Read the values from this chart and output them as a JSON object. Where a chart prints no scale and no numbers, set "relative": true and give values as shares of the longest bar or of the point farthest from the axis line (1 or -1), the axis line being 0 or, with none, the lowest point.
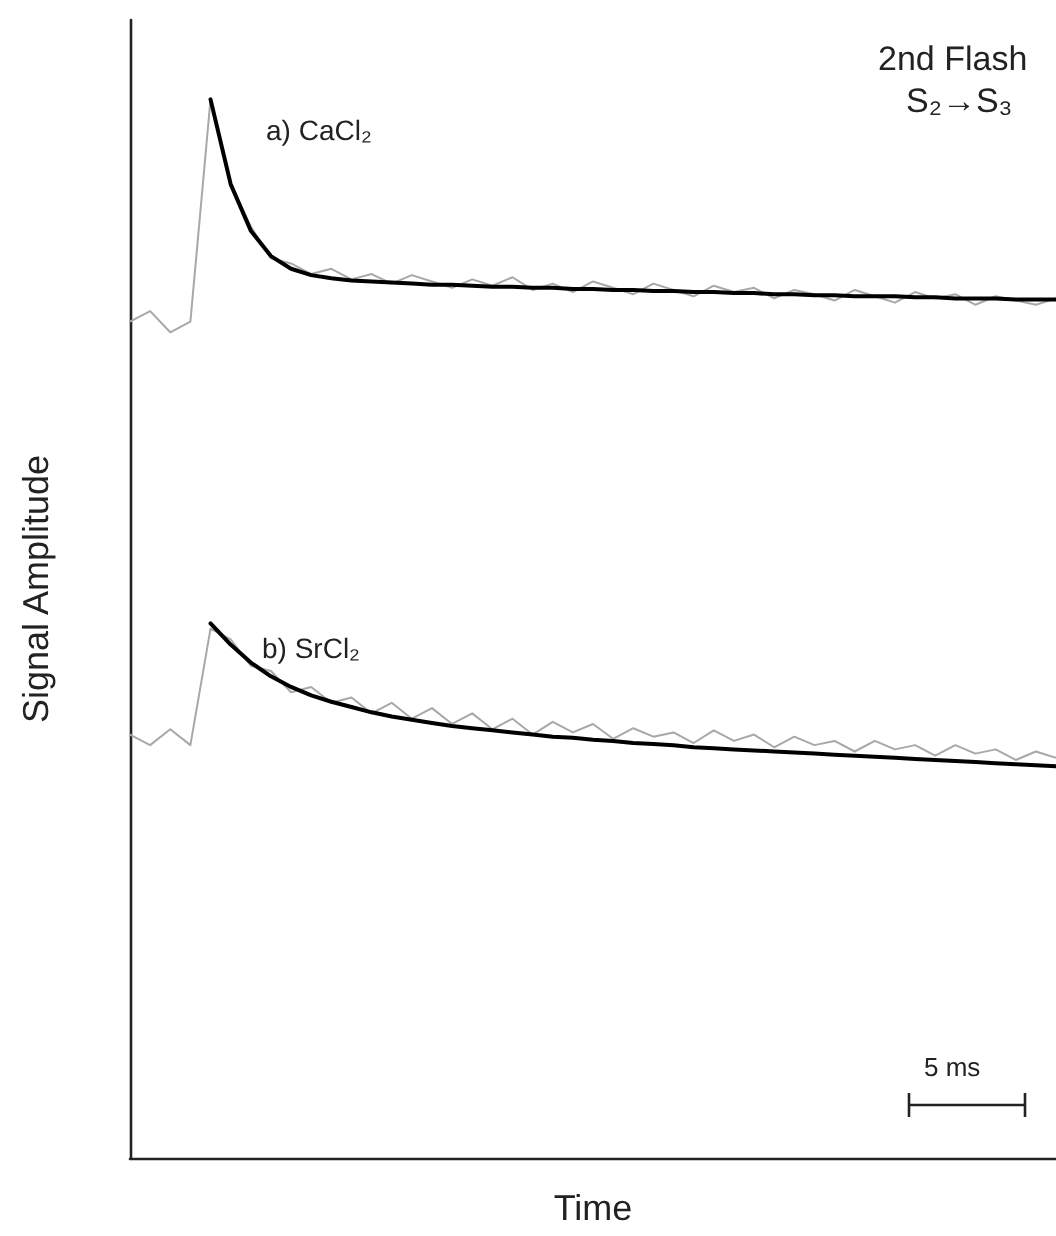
{
  "chart_data": {
    "type": "line",
    "relative": true,
    "xlabel": "Time",
    "ylabel": "Signal Amplitude",
    "marker": "none",
    "line_style": "solid",
    "annotations": [
      "a) CaCl₂",
      "b) SrCl₂",
      "2nd Flash",
      "S₂→S₃",
      "5 ms"
    ],
    "categories": [
      null,
      null,
      null,
      null,
      null,
      null,
      null,
      null,
      null,
      null,
      null,
      null,
      null,
      null,
      null,
      null,
      null,
      null,
      null,
      null,
      null,
      null,
      null,
      null,
      null,
      null,
      null,
      null,
      null,
      null,
      null,
      null,
      null,
      null,
      null,
      null,
      null,
      null,
      null,
      null,
      null,
      null,
      null,
      null,
      null,
      null,
      null
    ],
    "series": [
      {
        "color": "#a8a8a8",
        "values": [
          0.79,
          0.8,
          0.78,
          0.79,
          1,
          0.92,
          0.88,
          0.85,
          0.845,
          0.835,
          0.84,
          0.83,
          0.835,
          0.826,
          0.834,
          0.828,
          0.822,
          0.83,
          0.824,
          0.832,
          0.82,
          0.826,
          0.818,
          0.828,
          0.822,
          0.816,
          0.826,
          0.82,
          0.814,
          0.824,
          0.818,
          0.822,
          0.812,
          0.82,
          0.816,
          0.81,
          0.82,
          0.814,
          0.808,
          0.818,
          0.812,
          0.816,
          0.806,
          0.814,
          0.81,
          0.806,
          0.812
        ]
      },
      {
        "color": "#000000",
        "values": [
          null,
          null,
          null,
          null,
          1,
          0.92,
          0.876,
          0.852,
          0.84,
          0.834,
          0.831,
          0.829,
          0.828,
          0.827,
          0.826,
          0.825,
          0.825,
          0.824,
          0.823,
          0.823,
          0.822,
          0.822,
          0.821,
          0.821,
          0.82,
          0.82,
          0.819,
          0.819,
          0.818,
          0.818,
          0.817,
          0.817,
          0.816,
          0.816,
          0.815,
          0.815,
          0.814,
          0.814,
          0.814,
          0.813,
          0.813,
          0.812,
          0.812,
          0.812,
          0.811,
          0.811,
          0.811
        ]
      },
      {
        "color": "#a8a8a8",
        "values": [
          0.4,
          0.39,
          0.405,
          0.39,
          0.5,
          0.49,
          0.465,
          0.46,
          0.44,
          0.445,
          0.43,
          0.435,
          0.42,
          0.43,
          0.415,
          0.425,
          0.41,
          0.42,
          0.405,
          0.415,
          0.4,
          0.412,
          0.402,
          0.41,
          0.396,
          0.406,
          0.398,
          0.402,
          0.392,
          0.404,
          0.394,
          0.4,
          0.388,
          0.398,
          0.39,
          0.394,
          0.384,
          0.394,
          0.386,
          0.39,
          0.38,
          0.39,
          0.382,
          0.386,
          0.376,
          0.384,
          0.378
        ]
      },
      {
        "color": "#000000",
        "values": [
          null,
          null,
          null,
          null,
          0.505,
          0.485,
          0.468,
          0.455,
          0.445,
          0.437,
          0.431,
          0.426,
          0.421,
          0.417,
          0.414,
          0.411,
          0.408,
          0.406,
          0.404,
          0.402,
          0.4,
          0.398,
          0.397,
          0.395,
          0.394,
          0.392,
          0.391,
          0.39,
          0.388,
          0.387,
          0.386,
          0.385,
          0.384,
          0.383,
          0.382,
          0.381,
          0.38,
          0.379,
          0.378,
          0.377,
          0.376,
          0.375,
          0.374,
          0.373,
          0.372,
          0.371,
          0.37
        ]
      }
    ]
  }
}
